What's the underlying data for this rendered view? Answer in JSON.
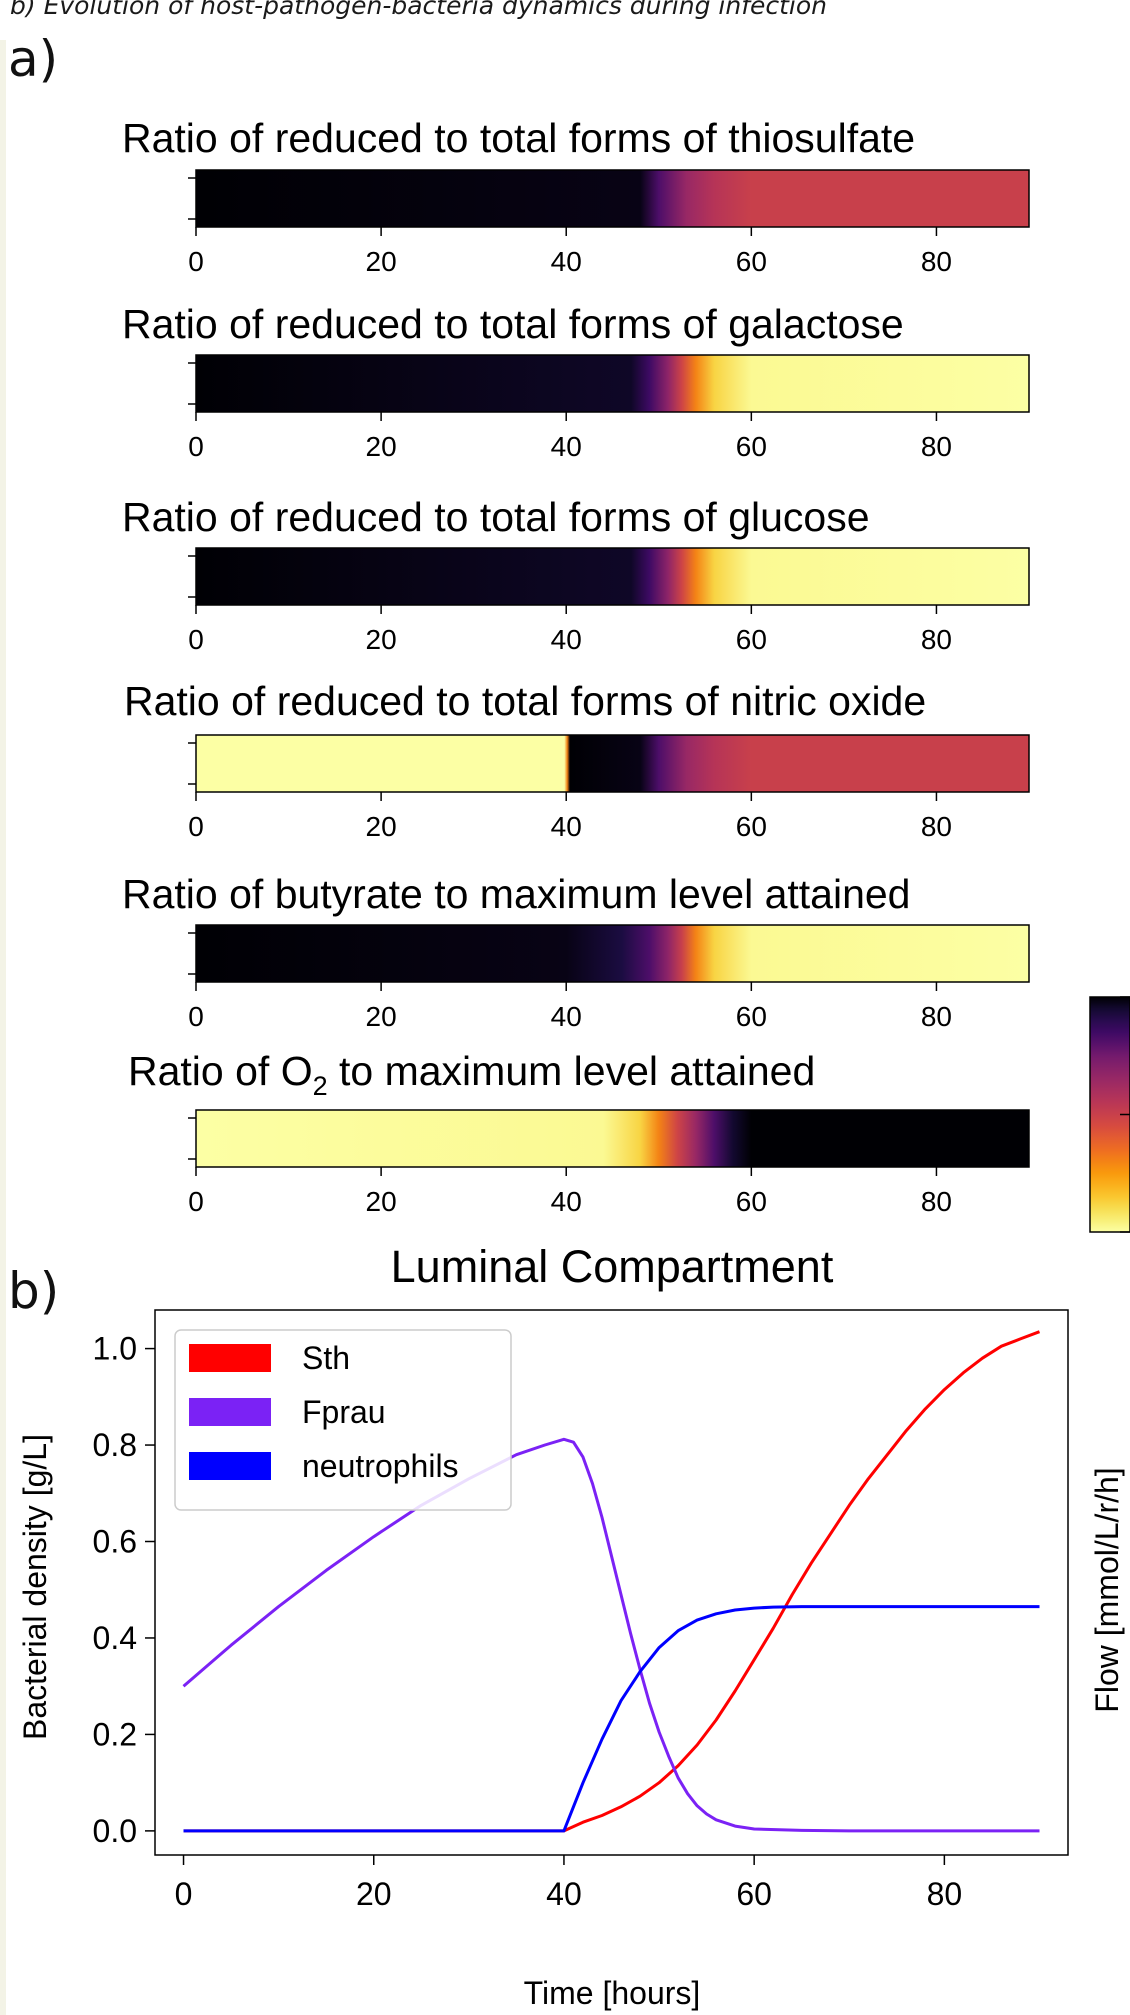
{
  "caption": "b) Evolution of host-pathogen-bacteria dynamics during infection",
  "panel_labels": {
    "a": "a)",
    "b": "b)"
  },
  "colors": {
    "sth": "#ff0000",
    "fprau": "#7b22f5",
    "neutrophils": "#0000ff",
    "heatmap_colormap": "inferno (reversed): light yellow = low ratio, black = high ratio"
  },
  "chart_data": [
    {
      "type": "heatmap",
      "title": "Ratio of reduced to total forms of thiosulfate",
      "xlim": [
        0,
        90
      ],
      "xticks": [
        0,
        20,
        40,
        60,
        80
      ],
      "stops": [
        [
          0,
          1.0
        ],
        [
          0.5,
          1.0
        ],
        [
          48,
          0.98
        ],
        [
          50,
          0.82
        ],
        [
          53,
          0.65
        ],
        [
          56,
          0.56
        ],
        [
          60,
          0.5
        ],
        [
          90,
          0.5
        ]
      ]
    },
    {
      "type": "heatmap",
      "title": "Ratio of reduced to total forms of galactose",
      "xlim": [
        0,
        90
      ],
      "xticks": [
        0,
        20,
        40,
        60,
        80
      ],
      "stops": [
        [
          0,
          1.0
        ],
        [
          47,
          0.96
        ],
        [
          49,
          0.85
        ],
        [
          51,
          0.68
        ],
        [
          52.5,
          0.48
        ],
        [
          54,
          0.3
        ],
        [
          56,
          0.12
        ],
        [
          60,
          0.02
        ],
        [
          90,
          0.0
        ]
      ]
    },
    {
      "type": "heatmap",
      "title": "Ratio of reduced to total forms of glucose",
      "xlim": [
        0,
        90
      ],
      "xticks": [
        0,
        20,
        40,
        60,
        80
      ],
      "stops": [
        [
          0,
          1.0
        ],
        [
          47,
          0.96
        ],
        [
          49,
          0.85
        ],
        [
          51,
          0.68
        ],
        [
          52.5,
          0.48
        ],
        [
          54,
          0.3
        ],
        [
          56,
          0.12
        ],
        [
          60,
          0.02
        ],
        [
          90,
          0.0
        ]
      ]
    },
    {
      "type": "heatmap",
      "title": "Ratio of reduced to total forms of nitric  oxide",
      "xlim": [
        0,
        90
      ],
      "xticks": [
        0,
        20,
        40,
        60,
        80
      ],
      "stops": [
        [
          0,
          0.0
        ],
        [
          39.8,
          0.0
        ],
        [
          40.1,
          0.3
        ],
        [
          40.4,
          1.0
        ],
        [
          48,
          0.98
        ],
        [
          50,
          0.82
        ],
        [
          53,
          0.65
        ],
        [
          56,
          0.56
        ],
        [
          60,
          0.5
        ],
        [
          90,
          0.5
        ]
      ]
    },
    {
      "type": "heatmap",
      "title": "Ratio of butyrate to maximum level attained",
      "xlim": [
        0,
        90
      ],
      "xticks": [
        0,
        20,
        40,
        60,
        80
      ],
      "stops": [
        [
          0,
          1.0
        ],
        [
          40,
          0.98
        ],
        [
          46,
          0.93
        ],
        [
          49,
          0.82
        ],
        [
          51,
          0.68
        ],
        [
          52.5,
          0.5
        ],
        [
          54,
          0.3
        ],
        [
          56,
          0.12
        ],
        [
          60,
          0.02
        ],
        [
          90,
          0.0
        ]
      ]
    },
    {
      "type": "heatmap",
      "title": "Ratio of O",
      "title_sub": "2",
      "title_rest": "  to maximum level attained",
      "xlim": [
        0,
        90
      ],
      "xticks": [
        0,
        20,
        40,
        60,
        80
      ],
      "stops": [
        [
          0,
          0.0
        ],
        [
          44,
          0.02
        ],
        [
          48,
          0.12
        ],
        [
          50,
          0.3
        ],
        [
          52,
          0.48
        ],
        [
          54,
          0.65
        ],
        [
          56,
          0.82
        ],
        [
          58,
          0.95
        ],
        [
          60,
          1.0
        ],
        [
          90,
          1.0
        ]
      ]
    },
    {
      "type": "line",
      "title": "Luminal Compartment",
      "xlabel": "Time [hours]",
      "ylabel": "Bacterial density [g/L]",
      "right_ylabel": "Flow [mmol/L/r/h]",
      "xlim": [
        -3,
        93
      ],
      "ylim": [
        -0.05,
        1.08
      ],
      "xticks": [
        0,
        20,
        40,
        60,
        80
      ],
      "yticks": [
        0.0,
        0.2,
        0.4,
        0.6,
        0.8,
        1.0
      ],
      "yticklabels": [
        "0.0",
        "0.2",
        "0.4",
        "0.6",
        "0.8",
        "1.0"
      ],
      "legend": "top-left",
      "series": [
        {
          "name": "Sth",
          "color": "#ff0000",
          "x": [
            0,
            40,
            42,
            44,
            46,
            48,
            50,
            52,
            54,
            56,
            58,
            60,
            62,
            64,
            66,
            68,
            70,
            72,
            74,
            76,
            78,
            80,
            82,
            84,
            86,
            88,
            90
          ],
          "y": [
            0,
            0,
            0.018,
            0.032,
            0.05,
            0.072,
            0.1,
            0.135,
            0.178,
            0.23,
            0.29,
            0.355,
            0.42,
            0.49,
            0.555,
            0.615,
            0.675,
            0.73,
            0.78,
            0.83,
            0.875,
            0.915,
            0.95,
            0.98,
            1.005,
            1.02,
            1.035
          ]
        },
        {
          "name": "Fprau",
          "color": "#7b22f5",
          "x": [
            0,
            5,
            10,
            15,
            20,
            25,
            30,
            35,
            38,
            40,
            41,
            42,
            43,
            44,
            45,
            46,
            47,
            48,
            49,
            50,
            51,
            52,
            53,
            54,
            55,
            56,
            58,
            60,
            65,
            70,
            80,
            90
          ],
          "y": [
            0.3,
            0.385,
            0.465,
            0.54,
            0.61,
            0.675,
            0.73,
            0.78,
            0.8,
            0.812,
            0.806,
            0.775,
            0.72,
            0.65,
            0.57,
            0.49,
            0.41,
            0.335,
            0.265,
            0.205,
            0.155,
            0.11,
            0.077,
            0.052,
            0.035,
            0.023,
            0.01,
            0.004,
            0.001,
            0,
            0,
            0
          ]
        },
        {
          "name": "neutrophils",
          "color": "#0000ff",
          "x": [
            0,
            40,
            42,
            44,
            46,
            48,
            50,
            52,
            54,
            56,
            58,
            60,
            62,
            65,
            70,
            80,
            90
          ],
          "y": [
            0,
            0,
            0.1,
            0.19,
            0.27,
            0.33,
            0.38,
            0.415,
            0.437,
            0.45,
            0.458,
            0.462,
            0.464,
            0.465,
            0.465,
            0.465,
            0.465
          ]
        }
      ]
    },
    {
      "type": "heatmap",
      "role": "colorbar",
      "title": "",
      "ticks_at": [
        1.0,
        0.5,
        0.0
      ],
      "ticklabels": []
    }
  ]
}
